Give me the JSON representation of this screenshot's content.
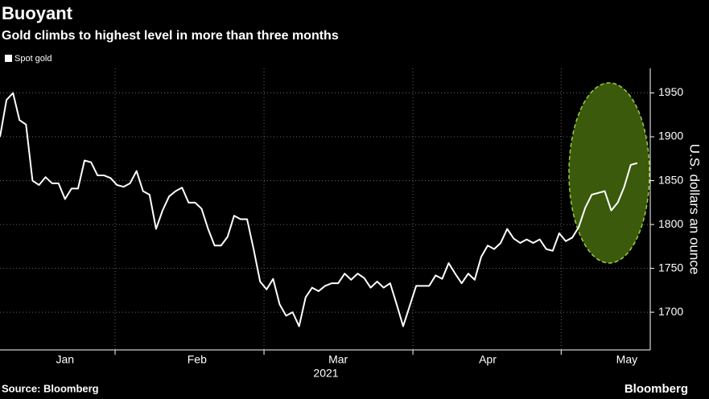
{
  "chart_data": {
    "type": "line",
    "title": "Buoyant",
    "subtitle": "Gold climbs to highest level in more than three months",
    "y_label": "U.S. dollars an ounce",
    "x_label": "2021",
    "source": "Source: Bloomberg",
    "brand": "Bloomberg",
    "series": [
      {
        "name": "Spot gold",
        "color": "#ffffff",
        "values": [
          1900,
          1942,
          1950,
          1919,
          1914,
          1850,
          1845,
          1854,
          1847,
          1847,
          1829,
          1841,
          1841,
          1873,
          1871,
          1856,
          1856,
          1853,
          1845,
          1843,
          1847,
          1861,
          1838,
          1834,
          1795,
          1816,
          1832,
          1838,
          1842,
          1825,
          1825,
          1818,
          1795,
          1776,
          1776,
          1786,
          1810,
          1806,
          1806,
          1772,
          1735,
          1726,
          1738,
          1709,
          1696,
          1700,
          1684,
          1717,
          1728,
          1724,
          1730,
          1733,
          1733,
          1744,
          1737,
          1744,
          1739,
          1728,
          1735,
          1728,
          1733,
          1709,
          1684,
          1707,
          1730,
          1730,
          1730,
          1742,
          1738,
          1756,
          1744,
          1733,
          1744,
          1737,
          1763,
          1776,
          1772,
          1779,
          1795,
          1784,
          1779,
          1783,
          1779,
          1783,
          1772,
          1770,
          1790,
          1781,
          1785,
          1797,
          1819,
          1834,
          1836,
          1838,
          1816,
          1825,
          1843,
          1868,
          1870
        ]
      }
    ],
    "xlim": [
      0,
      100
    ],
    "xticks": [
      {
        "value": 10,
        "label": "Jan"
      },
      {
        "value": 30.3,
        "label": "Feb"
      },
      {
        "value": 52,
        "label": "Mar"
      },
      {
        "value": 75,
        "label": "Apr"
      },
      {
        "value": 96.4,
        "label": "May"
      }
    ],
    "xgrid": [
      17.7,
      40.6,
      63.5,
      86.3
    ],
    "ylim": [
      1657,
      1978
    ],
    "yticks": [
      1700,
      1750,
      1800,
      1850,
      1900,
      1950
    ],
    "grid": true
  }
}
